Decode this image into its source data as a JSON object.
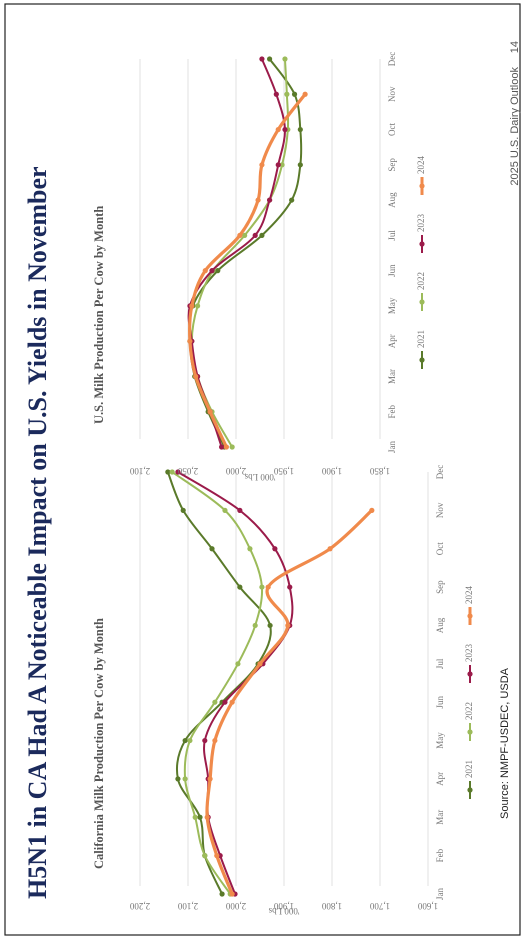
{
  "title": "H5N1 in CA Had A Noticeable Impact on U.S. Yields in November",
  "source": "Source: NMPF-USDEC, USDA",
  "footer": "2025 U.S. Dairy Outlook",
  "page_number": "14",
  "chart_data": [
    {
      "type": "line",
      "title": "California Milk Production Per Cow by Month",
      "y_label": "'000 Lbs",
      "categories": [
        "Jan",
        "Feb",
        "Mar",
        "Apr",
        "May",
        "Jun",
        "Jul",
        "Aug",
        "Sep",
        "Oct",
        "Nov",
        "Dec"
      ],
      "series": [
        {
          "name": "2021",
          "color": "#5a7a2a",
          "values": [
            2029,
            2065,
            2075,
            2121,
            2106,
            2029,
            1954,
            1929,
            1992,
            2050,
            2110,
            2142
          ]
        },
        {
          "name": "2022",
          "color": "#9cbb5a",
          "values": [
            2012,
            2065,
            2085,
            2106,
            2096,
            2044,
            1996,
            1960,
            1946,
            1971,
            2023,
            2133
          ]
        },
        {
          "name": "2023",
          "color": "#9b1b4a",
          "values": [
            2002,
            2033,
            2058,
            2058,
            2065,
            2023,
            1944,
            1888,
            1888,
            1919,
            1992,
            2121
          ]
        },
        {
          "name": "2024",
          "color": "#f08a4b",
          "values": [
            2008,
            2040,
            2060,
            2054,
            2044,
            2008,
            1950,
            1892,
            1933,
            1804,
            1717,
            null
          ]
        }
      ],
      "ylim": [
        1600,
        2200
      ],
      "yticks": [
        {
          "value": 1600,
          "label": "1,600"
        },
        {
          "value": 1700,
          "label": "1,700"
        },
        {
          "value": 1800,
          "label": "1,800"
        },
        {
          "value": 1900,
          "label": "1,900"
        },
        {
          "value": 2000,
          "label": "2,000"
        },
        {
          "value": 2100,
          "label": "2,100"
        },
        {
          "value": 2200,
          "label": "2,200"
        }
      ],
      "grid": true,
      "legend": "bottom"
    },
    {
      "type": "line",
      "title": "U.S. Milk Production Per Cow by Month",
      "y_label": "'000 Lbs",
      "categories": [
        "Jan",
        "Feb",
        "Mar",
        "Apr",
        "May",
        "Jun",
        "Jul",
        "Aug",
        "Sep",
        "Oct",
        "Nov",
        "Dec"
      ],
      "series": [
        {
          "name": "2021",
          "color": "#5a7a2a",
          "values": [
            2012,
            2029,
            2043,
            2048,
            2045,
            2019,
            1973,
            1942,
            1933,
            1933,
            1939,
            1965
          ]
        },
        {
          "name": "2022",
          "color": "#9cbb5a",
          "values": [
            2004,
            2025,
            2040,
            2046,
            2040,
            2024,
            1991,
            1965,
            1952,
            1946,
            1947,
            1949
          ]
        },
        {
          "name": "2023",
          "color": "#9b1b4a",
          "values": [
            2015,
            2027,
            2040,
            2046,
            2048,
            2025,
            1980,
            1965,
            1956,
            1949,
            1958,
            1973
          ]
        },
        {
          "name": "2024",
          "color": "#f08a4b",
          "values": [
            2010,
            2027,
            2042,
            2048,
            2046,
            2032,
            1996,
            1977,
            1973,
            1956,
            1928,
            null
          ]
        }
      ],
      "ylim": [
        1850,
        2100
      ],
      "yticks": [
        {
          "value": 1850,
          "label": "1,850"
        },
        {
          "value": 1900,
          "label": "1,900"
        },
        {
          "value": 1950,
          "label": "1,950"
        },
        {
          "value": 2000,
          "label": "2,000"
        },
        {
          "value": 2050,
          "label": "2,050"
        },
        {
          "value": 2100,
          "label": "2,100"
        }
      ],
      "grid": true,
      "legend": "bottom"
    }
  ]
}
